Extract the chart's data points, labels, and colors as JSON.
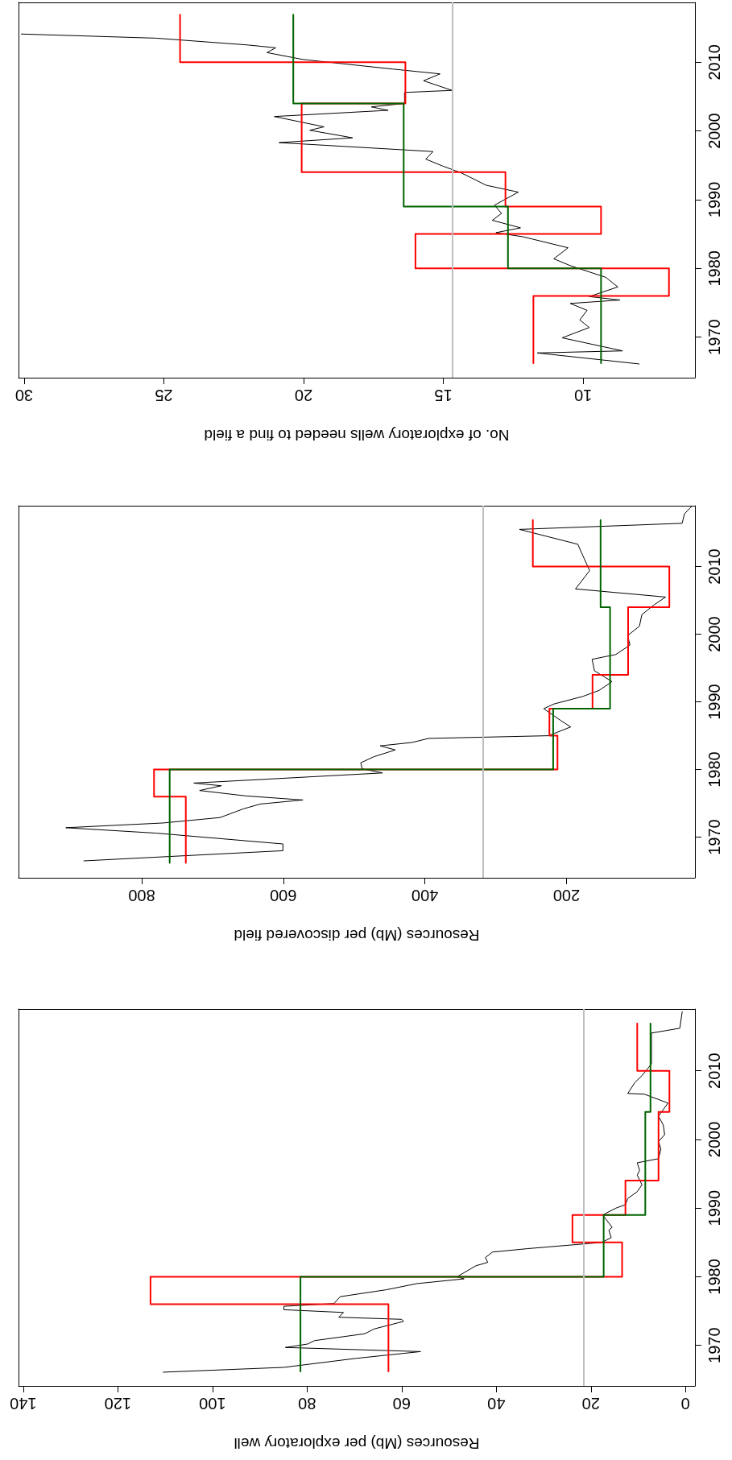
{
  "chart_data": [
    {
      "type": "line",
      "xlabel": "Resources (Mb) per exploratory well",
      "ylim": [
        1964.1,
        2019.0
      ],
      "yticks": [
        1970,
        1980,
        1990,
        2000,
        2010
      ],
      "xlim": [
        141,
        -2
      ],
      "xticks": [
        0,
        20,
        40,
        60,
        80,
        100,
        120,
        140
      ],
      "grid": false,
      "marker": "none",
      "line_style": "solid",
      "ref_lines": [
        {
          "axis": "x",
          "value": 21.5,
          "color": "#bebebe"
        }
      ],
      "series": [
        {
          "type": "line",
          "color": "#000000",
          "values": [
            1966.1,
            1966.8,
            1968.1,
            1969.1,
            1969.7,
            1970.2,
            1970.7,
            1971.7,
            1972.4,
            1973.5,
            1973.8,
            1974.1,
            1974.8,
            1975.2,
            1975.7,
            1976.1,
            1977.1,
            1978.1,
            1979.0,
            1979.7,
            1980.0,
            1981.2,
            1981.6,
            1982.1,
            1982.8,
            1983.6,
            1984.1,
            1985.0,
            1985.7,
            1986.8,
            1987.2,
            1989.0,
            1990.0,
            1990.5,
            1991.4,
            1992.4,
            1993.4,
            1994.8,
            1995.5,
            1996.6,
            1997.2,
            1998.6,
            1999.7,
            2000.7,
            2002.1,
            2003.4,
            2005.3,
            2006.6,
            2006.7,
            2008.3,
            2009.3,
            2011.0,
            2015.5,
            2016.2,
            2018.6
          ],
          "x": [
            110.4,
            84.9,
            69.8,
            56.0,
            84.6,
            79.9,
            78.4,
            67.8,
            65.8,
            59.6,
            60.0,
            73.3,
            72.3,
            84.9,
            84.9,
            74.3,
            73.0,
            63.3,
            56.8,
            46.8,
            48.3,
            45.3,
            44.3,
            41.8,
            42.3,
            40.8,
            33.3,
            17.7,
            15.7,
            16.2,
            15.5,
            17.5,
            14.7,
            12.7,
            12.2,
            10.2,
            9.2,
            10.2,
            9.7,
            10.2,
            5.7,
            5.2,
            5.7,
            4.4,
            4.7,
            5.7,
            3.7,
            8.7,
            12.2,
            10.7,
            9.2,
            7.2,
            7.2,
            1.2,
            0.7
          ]
        },
        {
          "type": "step",
          "color": "#ff0000",
          "values": [
            1966.2,
            1976,
            1980,
            1985,
            1989,
            1994,
            2004,
            2010,
            2016.9
          ],
          "x": [
            62.8,
            113.1,
            13.4,
            23.9,
            12.7,
            5.7,
            3.4,
            10.2,
            10.2
          ]
        },
        {
          "type": "step",
          "color": "#006400",
          "values": [
            1966.2,
            1980,
            1989,
            2004,
            2016.9
          ],
          "x": [
            81.4,
            17.3,
            8.5,
            7.4,
            7.4
          ]
        }
      ]
    },
    {
      "type": "line",
      "xlabel": "Resources (Mb) per discovered field",
      "ylim": [
        1964.0,
        2019.0
      ],
      "yticks": [
        1970,
        1980,
        1990,
        2000,
        2010
      ],
      "xlim": [
        974,
        18.5
      ],
      "xticks": [
        200,
        400,
        600,
        800
      ],
      "grid": false,
      "marker": "none",
      "line_style": "solid",
      "ref_lines": [
        {
          "axis": "x",
          "value": 317.9,
          "color": "#bebebe"
        }
      ],
      "series": [
        {
          "type": "line",
          "color": "#000000",
          "values": [
            1966.5,
            1968.0,
            1969.0,
            1970.6,
            1971.4,
            1972.1,
            1972.9,
            1974.2,
            1974.9,
            1975.5,
            1976.1,
            1976.9,
            1977.6,
            1978.0,
            1978.9,
            1979.5,
            1980.1,
            1981.0,
            1981.9,
            1982.9,
            1983.5,
            1984.0,
            1984.6,
            1985.0,
            1986.3,
            1987.2,
            1989.0,
            1989.7,
            1990.8,
            1991.7,
            1993.0,
            1994.6,
            1996.3,
            1997.0,
            1998.4,
            1999.8,
            2001.2,
            2002.9,
            2004.3,
            2005.5,
            2006.7,
            2009.4,
            2011.7,
            2013.3,
            2015.5,
            2016.4,
            2017.8,
            2018.9
          ],
          "x": [
            881.7,
            600.5,
            600.5,
            779.9,
            907.2,
            769.9,
            689.5,
            656.0,
            632.6,
            572.3,
            652.7,
            718.3,
            687.5,
            726.4,
            565.6,
            459.8,
            488.6,
            490.6,
            471.9,
            441.7,
            463.2,
            418.3,
            394.9,
            225.4,
            194.0,
            207.4,
            232.1,
            217.4,
            177.2,
            153.8,
            135.7,
            160.5,
            163.8,
            130.4,
            110.3,
            113.6,
            96.9,
            93.5,
            76.8,
            60.0,
            187.3,
            167.2,
            177.2,
            183.9,
            266.3,
            36.6,
            33.3,
            23.2
          ]
        },
        {
          "type": "step",
          "color": "#ff0000",
          "values": [
            1966.2,
            1976,
            1980,
            1985,
            1989,
            1994,
            2004,
            2010,
            2016.9
          ],
          "x": [
            737.7,
            782.6,
            212.7,
            224.1,
            163.2,
            112.9,
            54.7,
            247.5,
            247.5
          ]
        },
        {
          "type": "step",
          "color": "#006400",
          "values": [
            1966.2,
            1980,
            1989,
            2004,
            2016.9
          ],
          "x": [
            760.5,
            218.8,
            138.4,
            151.8,
            151.8
          ]
        }
      ]
    },
    {
      "type": "line",
      "xlabel": "No. of exploratory wells needed to find a field",
      "ylim": [
        1964.1,
        2018.7
      ],
      "yticks": [
        1970,
        1980,
        1990,
        2000,
        2010
      ],
      "xlim": [
        30.2,
        6.0
      ],
      "xticks": [
        10,
        15,
        20,
        25,
        30
      ],
      "grid": false,
      "marker": "none",
      "line_style": "solid",
      "ref_lines": [
        {
          "axis": "x",
          "value": 14.69,
          "color": "#bebebe"
        }
      ],
      "series": [
        {
          "type": "line",
          "color": "#000000",
          "values": [
            1966.1,
            1967.7,
            1968.0,
            1969.9,
            1971.4,
            1972.5,
            1973.9,
            1974.9,
            1975.4,
            1975.9,
            1977.3,
            1978.7,
            1980.4,
            1981.4,
            1983.0,
            1984.6,
            1985.2,
            1985.9,
            1987.0,
            1988.0,
            1989.2,
            1991.1,
            1992.1,
            1993.9,
            1994.9,
            1995.9,
            1997.0,
            1998.3,
            1999.0,
            2000.1,
            2000.6,
            2002.1,
            2003.0,
            2003.5,
            2004.0,
            2005.6,
            2005.9,
            2007.3,
            2008.3,
            2009.0,
            2010.4,
            2011.4,
            2012.1,
            2012.5,
            2013.5,
            2014.1
          ],
          "x": [
            8.0,
            11.64,
            8.59,
            10.75,
            9.78,
            10.12,
            9.86,
            10.46,
            8.68,
            9.78,
            8.76,
            9.19,
            10.46,
            11.05,
            10.54,
            12.15,
            13.12,
            12.24,
            13.25,
            12.92,
            13.17,
            12.32,
            13.47,
            14.36,
            15.03,
            15.63,
            15.37,
            20.88,
            18.25,
            19.78,
            19.27,
            21.05,
            16.98,
            17.58,
            16.39,
            16.39,
            14.69,
            15.71,
            15.12,
            16.81,
            20.03,
            21.31,
            21.0,
            21.98,
            25.29,
            30.1
          ]
        },
        {
          "type": "step",
          "color": "#ff0000",
          "values": [
            1966.2,
            1976,
            1980,
            1985,
            1989,
            1994,
            2004,
            2010,
            2016.9
          ],
          "x": [
            11.78,
            6.93,
            16.0,
            9.36,
            12.78,
            20.07,
            16.36,
            24.42,
            24.42
          ]
        },
        {
          "type": "step",
          "color": "#006400",
          "values": [
            1966.2,
            1980,
            1989,
            2004,
            2016.9
          ],
          "x": [
            9.36,
            12.69,
            16.42,
            20.37,
            20.37
          ]
        }
      ]
    }
  ]
}
